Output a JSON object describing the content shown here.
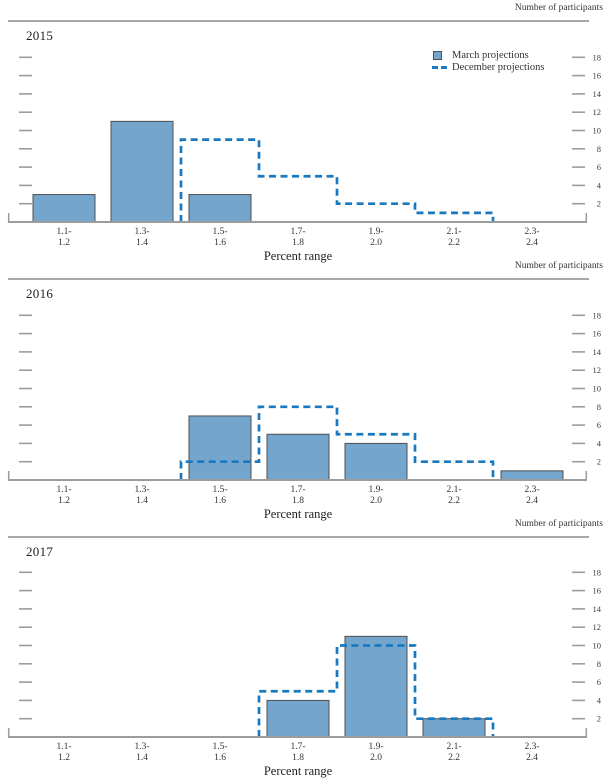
{
  "page": {
    "right_axis_label": "Number of participants",
    "x_axis_label": "Percent range",
    "legend": {
      "items": [
        {
          "label": "March projections",
          "swatch": "bar-swatch"
        },
        {
          "label": "December projections",
          "swatch": "dashed-line-swatch"
        }
      ]
    },
    "colors": {
      "bar_fill": "#74A5CD",
      "bar_border": "#4F4F4F",
      "december_line": "#1878C0",
      "axis_line": "#9C9C9C",
      "rule_line": "#757575",
      "text": "#2E2E2E"
    }
  },
  "chart_data": [
    {
      "type": "bar",
      "title": "2015",
      "xlabel": "Percent range",
      "ylabel": "Number of participants",
      "categories": [
        [
          "1.1-",
          "1.2"
        ],
        [
          "1.3-",
          "1.4"
        ],
        [
          "1.5-",
          "1.6"
        ],
        [
          "1.7-",
          "1.8"
        ],
        [
          "1.9-",
          "2.0"
        ],
        [
          "2.1-",
          "2.2"
        ],
        [
          "2.3-",
          "2.4"
        ]
      ],
      "series": [
        {
          "name": "March projections",
          "style": "solid-bars",
          "values": [
            3,
            11,
            3,
            0,
            0,
            0,
            0
          ]
        },
        {
          "name": "December projections",
          "style": "dashed-step-outline",
          "values": [
            0,
            0,
            9,
            5,
            2,
            1,
            0
          ]
        }
      ],
      "yticks": [
        2,
        4,
        6,
        8,
        10,
        12,
        14,
        16,
        18
      ],
      "ylim": [
        0,
        19
      ],
      "legend_position": "top-right",
      "grid": false
    },
    {
      "type": "bar",
      "title": "2016",
      "xlabel": "Percent range",
      "ylabel": "Number of participants",
      "categories": [
        [
          "1.1-",
          "1.2"
        ],
        [
          "1.3-",
          "1.4"
        ],
        [
          "1.5-",
          "1.6"
        ],
        [
          "1.7-",
          "1.8"
        ],
        [
          "1.9-",
          "2.0"
        ],
        [
          "2.1-",
          "2.2"
        ],
        [
          "2.3-",
          "2.4"
        ]
      ],
      "series": [
        {
          "name": "March projections",
          "style": "solid-bars",
          "values": [
            0,
            0,
            7,
            5,
            4,
            0,
            1
          ]
        },
        {
          "name": "December projections",
          "style": "dashed-step-outline",
          "values": [
            0,
            0,
            2,
            8,
            5,
            2,
            0
          ]
        }
      ],
      "yticks": [
        2,
        4,
        6,
        8,
        10,
        12,
        14,
        16,
        18
      ],
      "ylim": [
        0,
        19
      ],
      "legend_position": "none",
      "grid": false
    },
    {
      "type": "bar",
      "title": "2017",
      "xlabel": "Percent range",
      "ylabel": "Number of participants",
      "categories": [
        [
          "1.1-",
          "1.2"
        ],
        [
          "1.3-",
          "1.4"
        ],
        [
          "1.5-",
          "1.6"
        ],
        [
          "1.7-",
          "1.8"
        ],
        [
          "1.9-",
          "2.0"
        ],
        [
          "2.1-",
          "2.2"
        ],
        [
          "2.3-",
          "2.4"
        ]
      ],
      "series": [
        {
          "name": "March projections",
          "style": "solid-bars",
          "values": [
            0,
            0,
            0,
            4,
            11,
            2,
            0
          ]
        },
        {
          "name": "December projections",
          "style": "dashed-step-outline",
          "values": [
            0,
            0,
            0,
            5,
            10,
            2,
            0
          ]
        }
      ],
      "yticks": [
        2,
        4,
        6,
        8,
        10,
        12,
        14,
        16,
        18
      ],
      "ylim": [
        0,
        19
      ],
      "legend_position": "none",
      "grid": false
    }
  ]
}
